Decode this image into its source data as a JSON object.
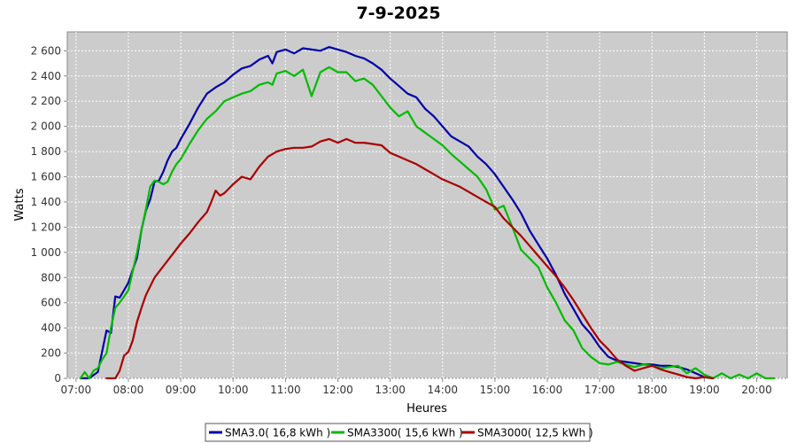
{
  "chart_data": {
    "type": "line",
    "title": "7-9-2025",
    "xlabel": "Heures",
    "ylabel": "Watts",
    "xlim": [
      "06:50",
      "20:35"
    ],
    "ylim": [
      0,
      2750
    ],
    "grid": true,
    "legend_placement": "bottom",
    "x_ticks": [
      "07:00",
      "08:00",
      "09:00",
      "10:00",
      "11:00",
      "12:00",
      "13:00",
      "14:00",
      "15:00",
      "16:00",
      "17:00",
      "18:00",
      "19:00",
      "20:00"
    ],
    "y_ticks": [
      {
        "value": 0,
        "label": "0"
      },
      {
        "value": 200,
        "label": "200"
      },
      {
        "value": 400,
        "label": "400"
      },
      {
        "value": 600,
        "label": "600"
      },
      {
        "value": 800,
        "label": "800"
      },
      {
        "value": 1000,
        "label": "1 000"
      },
      {
        "value": 1200,
        "label": "1 200"
      },
      {
        "value": 1400,
        "label": "1 400"
      },
      {
        "value": 1600,
        "label": "1 600"
      },
      {
        "value": 1800,
        "label": "1 800"
      },
      {
        "value": 2000,
        "label": "2 000"
      },
      {
        "value": 2200,
        "label": "2 200"
      },
      {
        "value": 2400,
        "label": "2 400"
      },
      {
        "value": 2600,
        "label": "2 600"
      }
    ],
    "series": [
      {
        "name": "SMA3.0( 16,8 kWh )",
        "color": "#0000aa",
        "points": [
          [
            "07:05",
            0
          ],
          [
            "07:15",
            0
          ],
          [
            "07:25",
            50
          ],
          [
            "07:35",
            380
          ],
          [
            "07:40",
            360
          ],
          [
            "07:45",
            650
          ],
          [
            "07:50",
            640
          ],
          [
            "07:55",
            700
          ],
          [
            "08:00",
            760
          ],
          [
            "08:10",
            960
          ],
          [
            "08:15",
            1180
          ],
          [
            "08:20",
            1330
          ],
          [
            "08:25",
            1420
          ],
          [
            "08:30",
            1560
          ],
          [
            "08:35",
            1570
          ],
          [
            "08:40",
            1640
          ],
          [
            "08:45",
            1730
          ],
          [
            "08:50",
            1800
          ],
          [
            "08:55",
            1830
          ],
          [
            "09:00",
            1900
          ],
          [
            "09:10",
            2020
          ],
          [
            "09:20",
            2150
          ],
          [
            "09:30",
            2260
          ],
          [
            "09:40",
            2310
          ],
          [
            "09:50",
            2350
          ],
          [
            "10:00",
            2410
          ],
          [
            "10:10",
            2460
          ],
          [
            "10:20",
            2480
          ],
          [
            "10:30",
            2530
          ],
          [
            "10:40",
            2560
          ],
          [
            "10:45",
            2500
          ],
          [
            "10:50",
            2590
          ],
          [
            "11:00",
            2610
          ],
          [
            "11:10",
            2580
          ],
          [
            "11:20",
            2620
          ],
          [
            "11:30",
            2610
          ],
          [
            "11:40",
            2600
          ],
          [
            "11:50",
            2630
          ],
          [
            "12:00",
            2610
          ],
          [
            "12:10",
            2590
          ],
          [
            "12:20",
            2560
          ],
          [
            "12:30",
            2540
          ],
          [
            "12:40",
            2500
          ],
          [
            "12:50",
            2450
          ],
          [
            "13:00",
            2380
          ],
          [
            "13:10",
            2320
          ],
          [
            "13:20",
            2260
          ],
          [
            "13:30",
            2230
          ],
          [
            "13:40",
            2140
          ],
          [
            "13:50",
            2080
          ],
          [
            "14:00",
            2000
          ],
          [
            "14:10",
            1920
          ],
          [
            "14:20",
            1880
          ],
          [
            "14:30",
            1840
          ],
          [
            "14:40",
            1760
          ],
          [
            "14:50",
            1700
          ],
          [
            "15:00",
            1620
          ],
          [
            "15:10",
            1520
          ],
          [
            "15:20",
            1420
          ],
          [
            "15:30",
            1310
          ],
          [
            "15:40",
            1170
          ],
          [
            "15:50",
            1060
          ],
          [
            "16:00",
            950
          ],
          [
            "16:10",
            820
          ],
          [
            "16:20",
            670
          ],
          [
            "16:30",
            550
          ],
          [
            "16:40",
            430
          ],
          [
            "16:50",
            350
          ],
          [
            "17:00",
            250
          ],
          [
            "17:10",
            170
          ],
          [
            "17:20",
            140
          ],
          [
            "17:30",
            130
          ],
          [
            "17:40",
            120
          ],
          [
            "17:50",
            110
          ],
          [
            "18:00",
            110
          ],
          [
            "18:10",
            100
          ],
          [
            "18:20",
            100
          ],
          [
            "18:30",
            90
          ],
          [
            "18:40",
            70
          ],
          [
            "18:50",
            40
          ],
          [
            "19:00",
            10
          ],
          [
            "19:10",
            0
          ]
        ]
      },
      {
        "name": "SMA3300( 15,6 kWh )",
        "color": "#00bb00",
        "points": [
          [
            "07:05",
            0
          ],
          [
            "07:10",
            50
          ],
          [
            "07:15",
            0
          ],
          [
            "07:20",
            60
          ],
          [
            "07:25",
            80
          ],
          [
            "07:30",
            150
          ],
          [
            "07:35",
            200
          ],
          [
            "07:40",
            400
          ],
          [
            "07:45",
            560
          ],
          [
            "07:50",
            600
          ],
          [
            "08:00",
            700
          ],
          [
            "08:05",
            850
          ],
          [
            "08:10",
            1000
          ],
          [
            "08:15",
            1180
          ],
          [
            "08:20",
            1340
          ],
          [
            "08:25",
            1520
          ],
          [
            "08:30",
            1570
          ],
          [
            "08:35",
            1560
          ],
          [
            "08:40",
            1540
          ],
          [
            "08:45",
            1560
          ],
          [
            "08:50",
            1640
          ],
          [
            "08:55",
            1700
          ],
          [
            "09:00",
            1740
          ],
          [
            "09:10",
            1860
          ],
          [
            "09:20",
            1970
          ],
          [
            "09:30",
            2060
          ],
          [
            "09:40",
            2120
          ],
          [
            "09:50",
            2200
          ],
          [
            "10:00",
            2230
          ],
          [
            "10:10",
            2260
          ],
          [
            "10:20",
            2280
          ],
          [
            "10:30",
            2330
          ],
          [
            "10:40",
            2350
          ],
          [
            "10:45",
            2330
          ],
          [
            "10:50",
            2420
          ],
          [
            "11:00",
            2440
          ],
          [
            "11:10",
            2400
          ],
          [
            "11:20",
            2450
          ],
          [
            "11:30",
            2240
          ],
          [
            "11:40",
            2430
          ],
          [
            "11:50",
            2470
          ],
          [
            "12:00",
            2430
          ],
          [
            "12:10",
            2430
          ],
          [
            "12:20",
            2360
          ],
          [
            "12:30",
            2380
          ],
          [
            "12:40",
            2330
          ],
          [
            "12:50",
            2240
          ],
          [
            "13:00",
            2150
          ],
          [
            "13:10",
            2080
          ],
          [
            "13:20",
            2120
          ],
          [
            "13:30",
            2000
          ],
          [
            "13:40",
            1950
          ],
          [
            "13:50",
            1900
          ],
          [
            "14:00",
            1850
          ],
          [
            "14:10",
            1780
          ],
          [
            "14:20",
            1720
          ],
          [
            "14:30",
            1660
          ],
          [
            "14:40",
            1600
          ],
          [
            "14:50",
            1500
          ],
          [
            "15:00",
            1340
          ],
          [
            "15:10",
            1370
          ],
          [
            "15:20",
            1200
          ],
          [
            "15:30",
            1020
          ],
          [
            "15:40",
            950
          ],
          [
            "15:50",
            880
          ],
          [
            "16:00",
            720
          ],
          [
            "16:10",
            600
          ],
          [
            "16:20",
            460
          ],
          [
            "16:30",
            380
          ],
          [
            "16:40",
            240
          ],
          [
            "16:50",
            170
          ],
          [
            "17:00",
            120
          ],
          [
            "17:10",
            110
          ],
          [
            "17:20",
            130
          ],
          [
            "17:30",
            110
          ],
          [
            "17:40",
            90
          ],
          [
            "17:50",
            110
          ],
          [
            "18:00",
            100
          ],
          [
            "18:10",
            80
          ],
          [
            "18:20",
            90
          ],
          [
            "18:30",
            100
          ],
          [
            "18:40",
            40
          ],
          [
            "18:50",
            80
          ],
          [
            "19:00",
            30
          ],
          [
            "19:10",
            0
          ],
          [
            "19:20",
            40
          ],
          [
            "19:30",
            0
          ],
          [
            "19:40",
            30
          ],
          [
            "19:50",
            0
          ],
          [
            "20:00",
            40
          ],
          [
            "20:10",
            0
          ],
          [
            "20:20",
            0
          ]
        ]
      },
      {
        "name": "SMA3000( 12,5 kWh )",
        "color": "#aa0000",
        "points": [
          [
            "07:35",
            0
          ],
          [
            "07:45",
            0
          ],
          [
            "07:50",
            60
          ],
          [
            "07:55",
            180
          ],
          [
            "08:00",
            210
          ],
          [
            "08:05",
            300
          ],
          [
            "08:10",
            450
          ],
          [
            "08:15",
            560
          ],
          [
            "08:20",
            660
          ],
          [
            "08:30",
            800
          ],
          [
            "08:40",
            890
          ],
          [
            "08:50",
            980
          ],
          [
            "09:00",
            1070
          ],
          [
            "09:10",
            1150
          ],
          [
            "09:20",
            1240
          ],
          [
            "09:30",
            1320
          ],
          [
            "09:35",
            1400
          ],
          [
            "09:40",
            1490
          ],
          [
            "09:45",
            1450
          ],
          [
            "09:50",
            1470
          ],
          [
            "10:00",
            1540
          ],
          [
            "10:10",
            1600
          ],
          [
            "10:20",
            1580
          ],
          [
            "10:30",
            1680
          ],
          [
            "10:40",
            1760
          ],
          [
            "10:50",
            1800
          ],
          [
            "11:00",
            1820
          ],
          [
            "11:10",
            1830
          ],
          [
            "11:20",
            1830
          ],
          [
            "11:30",
            1840
          ],
          [
            "11:40",
            1880
          ],
          [
            "11:50",
            1900
          ],
          [
            "12:00",
            1870
          ],
          [
            "12:10",
            1900
          ],
          [
            "12:20",
            1870
          ],
          [
            "12:30",
            1870
          ],
          [
            "12:40",
            1860
          ],
          [
            "12:50",
            1850
          ],
          [
            "13:00",
            1790
          ],
          [
            "13:10",
            1760
          ],
          [
            "13:20",
            1730
          ],
          [
            "13:30",
            1700
          ],
          [
            "13:40",
            1660
          ],
          [
            "13:50",
            1620
          ],
          [
            "14:00",
            1580
          ],
          [
            "14:10",
            1550
          ],
          [
            "14:20",
            1520
          ],
          [
            "14:30",
            1480
          ],
          [
            "14:40",
            1440
          ],
          [
            "14:50",
            1400
          ],
          [
            "15:00",
            1360
          ],
          [
            "15:10",
            1270
          ],
          [
            "15:20",
            1200
          ],
          [
            "15:30",
            1130
          ],
          [
            "15:40",
            1050
          ],
          [
            "15:50",
            970
          ],
          [
            "16:00",
            890
          ],
          [
            "16:10",
            810
          ],
          [
            "16:20",
            720
          ],
          [
            "16:30",
            620
          ],
          [
            "16:40",
            510
          ],
          [
            "16:50",
            400
          ],
          [
            "17:00",
            300
          ],
          [
            "17:10",
            230
          ],
          [
            "17:20",
            150
          ],
          [
            "17:30",
            100
          ],
          [
            "17:40",
            60
          ],
          [
            "17:50",
            80
          ],
          [
            "18:00",
            100
          ],
          [
            "18:10",
            70
          ],
          [
            "18:20",
            50
          ],
          [
            "18:30",
            30
          ],
          [
            "18:40",
            10
          ],
          [
            "18:50",
            0
          ],
          [
            "19:00",
            10
          ],
          [
            "19:10",
            0
          ]
        ]
      }
    ]
  }
}
